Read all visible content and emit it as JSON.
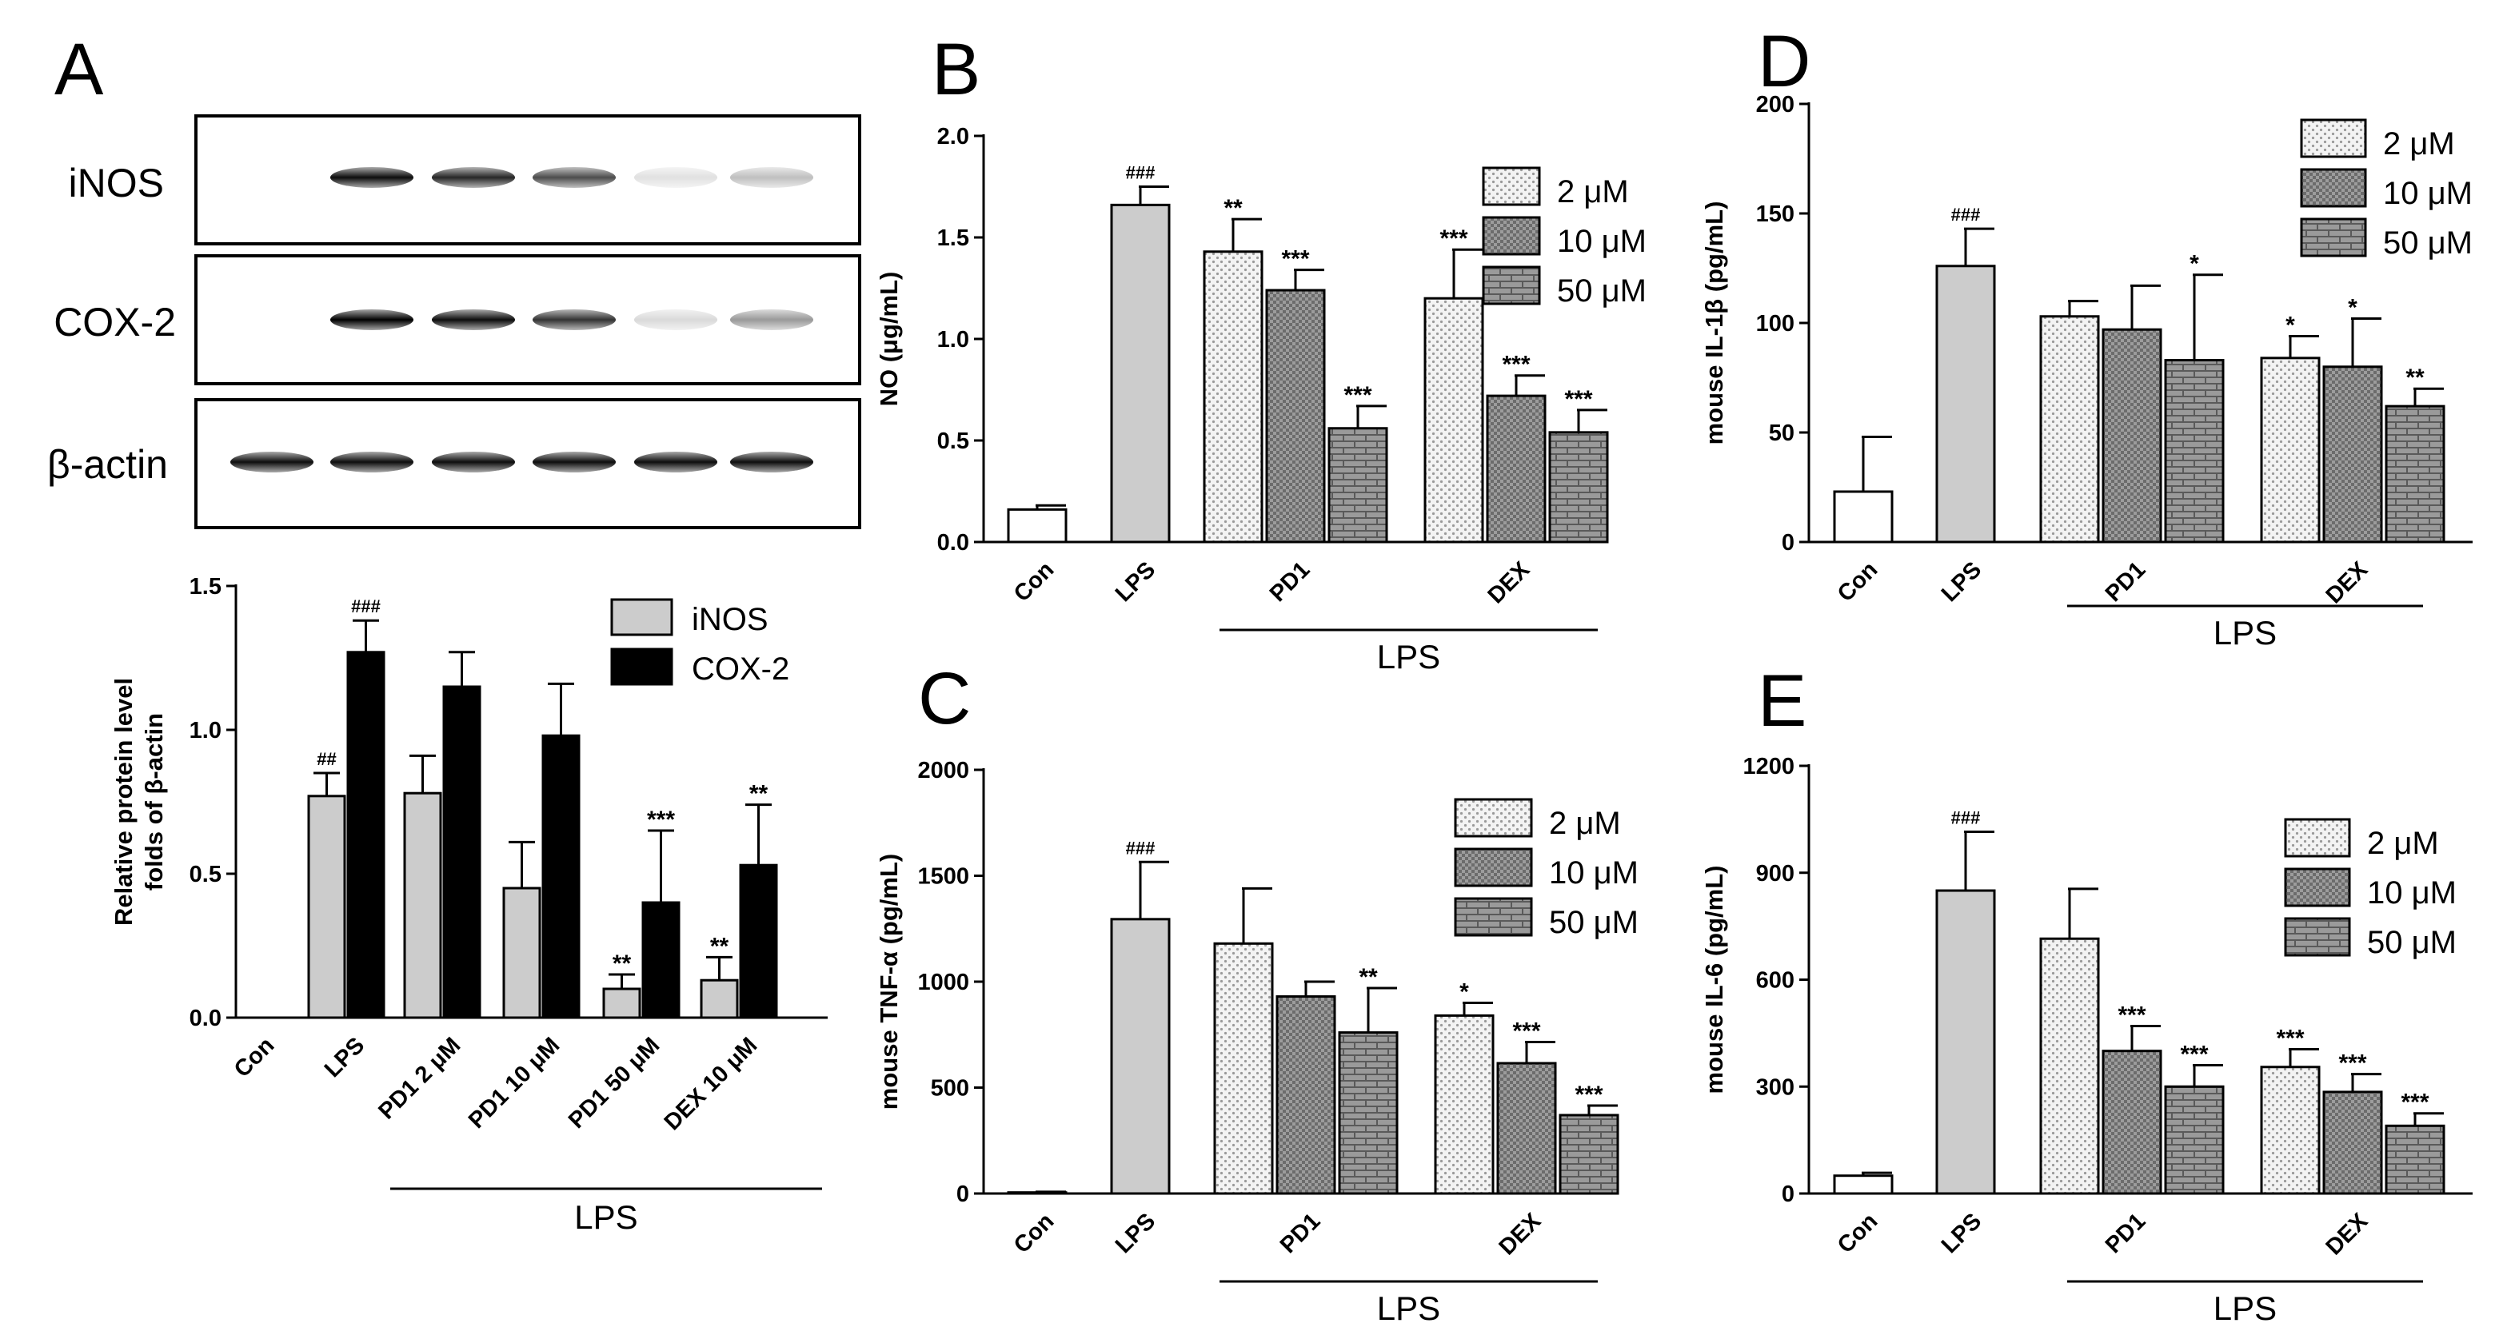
{
  "figure": {
    "blot": {
      "letter": "A",
      "rows": [
        {
          "label": "iNOS",
          "band_intensities": [
            0,
            0.95,
            0.85,
            0.7,
            0.12,
            0.25
          ]
        },
        {
          "label": "COX-2",
          "band_intensities": [
            0,
            1.0,
            0.95,
            0.8,
            0.15,
            0.4
          ]
        },
        {
          "label": "β-actin",
          "band_intensities": [
            0.95,
            0.95,
            0.95,
            0.95,
            0.95,
            0.95
          ]
        }
      ]
    },
    "colors": {
      "gray": "#cccccc",
      "black": "#000000",
      "white": "#ffffff",
      "dots": "#efefef",
      "check": "#8e8e8e",
      "brick": "#595959"
    }
  },
  "chart_data": [
    {
      "panel": "A",
      "type": "bar",
      "title": "",
      "ylabel_lines": [
        "Relative protein level",
        "folds of β-actin"
      ],
      "ylim": [
        0,
        1.5
      ],
      "yticks": [
        "0.0",
        "0.5",
        "1.0",
        "1.5"
      ],
      "categories": [
        "Con",
        "LPS",
        "PD1 2 μM",
        "PD1 10 μM",
        "PD1 50 μM",
        "DEX 10 μM"
      ],
      "series": [
        {
          "name": "iNOS",
          "pattern": "gray",
          "values": [
            0,
            0.77,
            0.78,
            0.45,
            0.1,
            0.13
          ],
          "errors": [
            0,
            0.08,
            0.13,
            0.16,
            0.05,
            0.08
          ],
          "annotations": [
            "",
            "##",
            "",
            "",
            "**",
            "**"
          ]
        },
        {
          "name": "COX-2",
          "pattern": "black",
          "values": [
            0,
            1.27,
            1.15,
            0.98,
            0.4,
            0.53
          ],
          "errors": [
            0,
            0.11,
            0.12,
            0.18,
            0.25,
            0.21
          ],
          "annotations": [
            "",
            "###",
            "",
            "",
            "***",
            "**"
          ]
        }
      ],
      "group_label": "LPS",
      "legend": "top-right"
    },
    {
      "panel": "B",
      "type": "bar",
      "title": "",
      "ylabel": "NO (μg/mL)",
      "ylim": [
        0,
        2.0
      ],
      "yticks": [
        "0.0",
        "0.5",
        "1.0",
        "1.5",
        "2.0"
      ],
      "categories": [
        "Con",
        "LPS",
        "PD1",
        "DEX"
      ],
      "legend_labels": [
        "2 μM",
        "10 μM",
        "50 μM"
      ],
      "bars": [
        {
          "value": 0.16,
          "error": 0.02,
          "pattern": "white",
          "sig": ""
        },
        {
          "value": 1.66,
          "error": 0.09,
          "pattern": "gray",
          "sig": "###"
        },
        {
          "value": 1.43,
          "error": 0.16,
          "pattern": "dots",
          "sig": "**"
        },
        {
          "value": 1.24,
          "error": 0.1,
          "pattern": "check",
          "sig": "***"
        },
        {
          "value": 0.56,
          "error": 0.11,
          "pattern": "brick",
          "sig": "***"
        },
        {
          "value": 1.2,
          "error": 0.24,
          "pattern": "dots",
          "sig": "***"
        },
        {
          "value": 0.72,
          "error": 0.1,
          "pattern": "check",
          "sig": "***"
        },
        {
          "value": 0.54,
          "error": 0.11,
          "pattern": "brick",
          "sig": "***"
        }
      ],
      "group_label": "LPS"
    },
    {
      "panel": "C",
      "type": "bar",
      "title": "",
      "ylabel": "mouse TNF-α (pg/mL)",
      "ylim": [
        0,
        2000
      ],
      "yticks": [
        "0",
        "500",
        "1000",
        "1500",
        "2000"
      ],
      "categories": [
        "Con",
        "LPS",
        "PD1",
        "DEX"
      ],
      "legend_labels": [
        "2 μM",
        "10 μM",
        "50 μM"
      ],
      "bars": [
        {
          "value": 5,
          "error": 3,
          "pattern": "white",
          "sig": ""
        },
        {
          "value": 1295,
          "error": 270,
          "pattern": "gray",
          "sig": "###"
        },
        {
          "value": 1180,
          "error": 260,
          "pattern": "dots",
          "sig": ""
        },
        {
          "value": 930,
          "error": 70,
          "pattern": "check",
          "sig": ""
        },
        {
          "value": 760,
          "error": 210,
          "pattern": "brick",
          "sig": "**"
        },
        {
          "value": 840,
          "error": 60,
          "pattern": "dots",
          "sig": "*"
        },
        {
          "value": 615,
          "error": 100,
          "pattern": "check",
          "sig": "***"
        },
        {
          "value": 370,
          "error": 45,
          "pattern": "brick",
          "sig": "***"
        }
      ],
      "group_label": "LPS"
    },
    {
      "panel": "D",
      "type": "bar",
      "title": "",
      "ylabel": "mouse IL-1β (pg/mL)",
      "ylim": [
        0,
        200
      ],
      "yticks": [
        "0",
        "50",
        "100",
        "150",
        "200"
      ],
      "categories": [
        "Con",
        "LPS",
        "PD1",
        "DEX"
      ],
      "legend_labels": [
        "2 μM",
        "10 μM",
        "50 μM"
      ],
      "bars": [
        {
          "value": 23,
          "error": 25,
          "pattern": "white",
          "sig": ""
        },
        {
          "value": 126,
          "error": 17,
          "pattern": "gray",
          "sig": "###"
        },
        {
          "value": 103,
          "error": 7,
          "pattern": "dots",
          "sig": ""
        },
        {
          "value": 97,
          "error": 20,
          "pattern": "check",
          "sig": ""
        },
        {
          "value": 83,
          "error": 39,
          "pattern": "brick",
          "sig": "*"
        },
        {
          "value": 84,
          "error": 10,
          "pattern": "dots",
          "sig": "*"
        },
        {
          "value": 80,
          "error": 22,
          "pattern": "check",
          "sig": "*"
        },
        {
          "value": 62,
          "error": 8,
          "pattern": "brick",
          "sig": "**"
        }
      ],
      "group_label": "LPS"
    },
    {
      "panel": "E",
      "type": "bar",
      "title": "",
      "ylabel": "mouse IL-6 (pg/mL)",
      "ylim": [
        0,
        1200
      ],
      "yticks": [
        "0",
        "300",
        "600",
        "900",
        "1200"
      ],
      "categories": [
        "Con",
        "LPS",
        "PD1",
        "DEX"
      ],
      "legend_labels": [
        "2 μM",
        "10 μM",
        "50 μM"
      ],
      "bars": [
        {
          "value": 50,
          "error": 8,
          "pattern": "white",
          "sig": ""
        },
        {
          "value": 850,
          "error": 165,
          "pattern": "gray",
          "sig": "###"
        },
        {
          "value": 715,
          "error": 140,
          "pattern": "dots",
          "sig": ""
        },
        {
          "value": 400,
          "error": 70,
          "pattern": "check",
          "sig": "***"
        },
        {
          "value": 300,
          "error": 60,
          "pattern": "brick",
          "sig": "***"
        },
        {
          "value": 355,
          "error": 50,
          "pattern": "dots",
          "sig": "***"
        },
        {
          "value": 285,
          "error": 50,
          "pattern": "check",
          "sig": "***"
        },
        {
          "value": 190,
          "error": 35,
          "pattern": "brick",
          "sig": "***"
        }
      ],
      "group_label": "LPS"
    }
  ]
}
